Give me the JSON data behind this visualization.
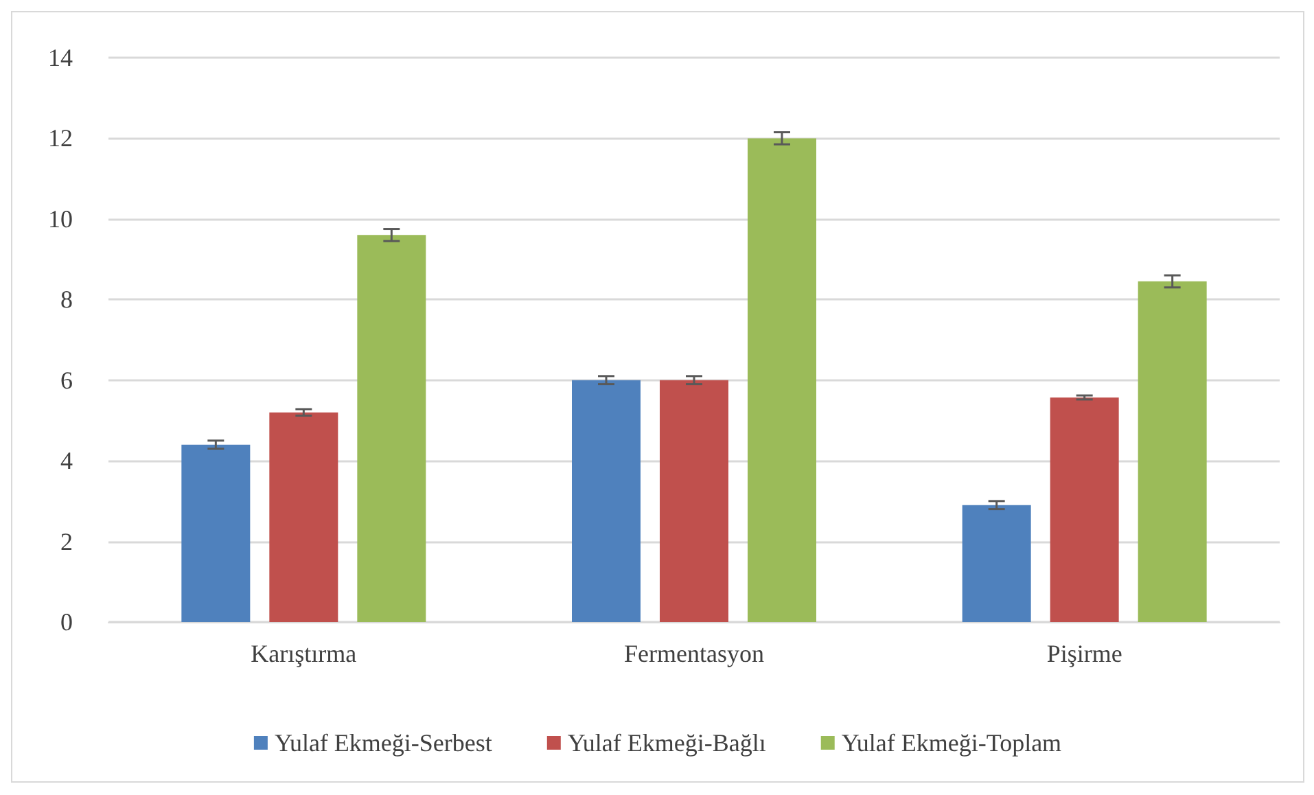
{
  "chart_data": {
    "type": "bar",
    "categories": [
      "Karıştırma",
      "Fermentasyon",
      "Pişirme"
    ],
    "series": [
      {
        "name": "Yulaf Ekmeği-Serbest",
        "color": "#4f81bd",
        "values": [
          4.4,
          6.0,
          2.9
        ],
        "errors": [
          0.1,
          0.1,
          0.1
        ]
      },
      {
        "name": "Yulaf Ekmeği-Bağlı",
        "color": "#c0504d",
        "values": [
          5.2,
          6.0,
          5.57
        ],
        "errors": [
          0.08,
          0.1,
          0.05
        ]
      },
      {
        "name": "Yulaf Ekmeği-Toplam",
        "color": "#9bbb59",
        "values": [
          9.6,
          12.0,
          8.45
        ],
        "errors": [
          0.15,
          0.15,
          0.15
        ]
      }
    ],
    "ylim": [
      0,
      14
    ],
    "yticks": [
      0,
      2,
      4,
      6,
      8,
      10,
      12,
      14
    ],
    "grid": "y",
    "legend": "bottom"
  }
}
